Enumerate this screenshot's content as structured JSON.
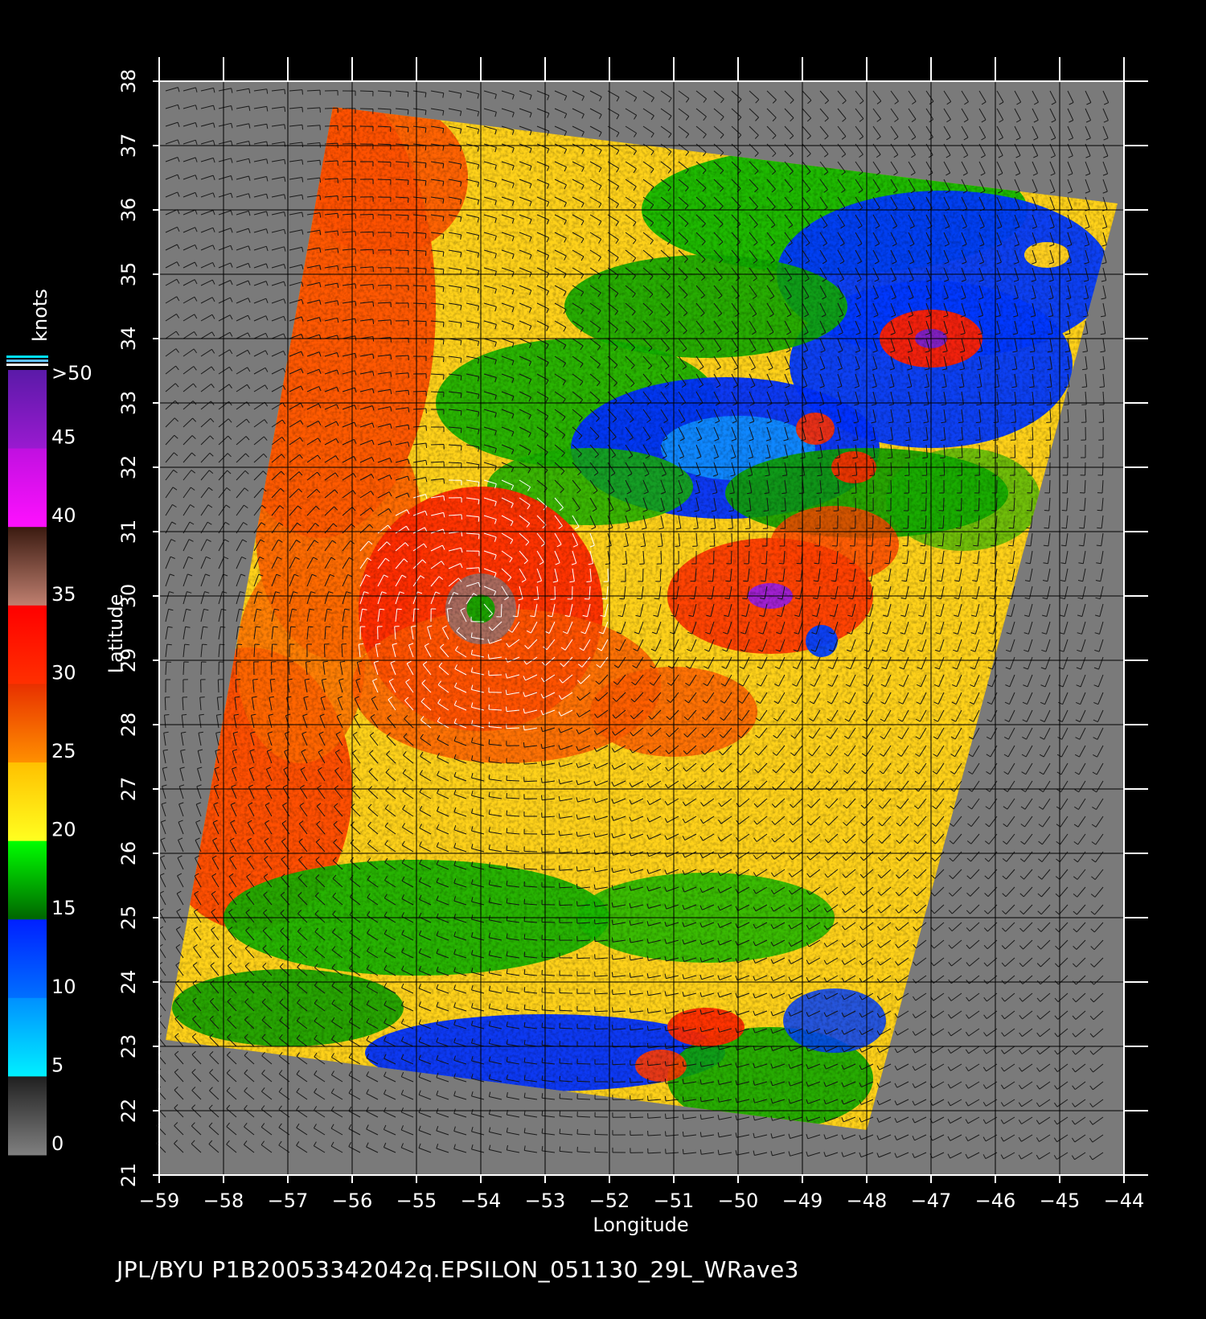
{
  "map": {
    "xlabel": "Longitude",
    "ylabel": "Latitude",
    "lon_range": [
      -59,
      -44
    ],
    "lat_range": [
      21,
      38
    ],
    "lon_ticks": [
      "−59",
      "−58",
      "−57",
      "−56",
      "−55",
      "−54",
      "−53",
      "−52",
      "−51",
      "−50",
      "−49",
      "−48",
      "−47",
      "−46",
      "−45",
      "−44"
    ],
    "lat_ticks": [
      "21",
      "22",
      "23",
      "24",
      "25",
      "26",
      "27",
      "28",
      "29",
      "30",
      "31",
      "32",
      "33",
      "34",
      "35",
      "36",
      "37",
      "38"
    ],
    "storm_center": {
      "lon": -54.0,
      "lat": 29.8
    },
    "swath_corners": {
      "top_left": {
        "lon": -56.3,
        "lat": 37.6
      },
      "top_right": {
        "lon": -44.1,
        "lat": 36.1
      },
      "bottom_right": {
        "lon": -48.0,
        "lat": 21.7
      },
      "bottom_left": {
        "lon": -58.9,
        "lat": 23.1
      }
    },
    "no_data_color": "#7a7a7a",
    "grid": true
  },
  "colorbar": {
    "title": "knots",
    "labels": [
      ">50",
      "45",
      "40",
      "35",
      "30",
      "25",
      "20",
      "15",
      "10",
      "5",
      "0"
    ],
    "bands": [
      {
        "from": 50,
        "to": 45,
        "colors": [
          "#5a1aa8",
          "#9a1ad0"
        ]
      },
      {
        "from": 45,
        "to": 40,
        "colors": [
          "#c010e0",
          "#ff10ff"
        ]
      },
      {
        "from": 40,
        "to": 35,
        "colors": [
          "#3a1a10",
          "#c08070"
        ]
      },
      {
        "from": 35,
        "to": 30,
        "colors": [
          "#ff0000",
          "#ff3000"
        ]
      },
      {
        "from": 30,
        "to": 25,
        "colors": [
          "#e83000",
          "#ff9000"
        ]
      },
      {
        "from": 25,
        "to": 20,
        "colors": [
          "#ffc000",
          "#ffff20"
        ]
      },
      {
        "from": 20,
        "to": 15,
        "colors": [
          "#00ff00",
          "#006400"
        ]
      },
      {
        "from": 15,
        "to": 10,
        "colors": [
          "#0020ff",
          "#0070ff"
        ]
      },
      {
        "from": 10,
        "to": 5,
        "colors": [
          "#0090ff",
          "#00f0ff"
        ]
      },
      {
        "from": 5,
        "to": 0,
        "colors": [
          "#202020",
          "#808080"
        ]
      }
    ]
  },
  "footer": {
    "caption": "JPL/BYU  P1B20053342042q.EPSILON_051130_29L_WRave3"
  }
}
